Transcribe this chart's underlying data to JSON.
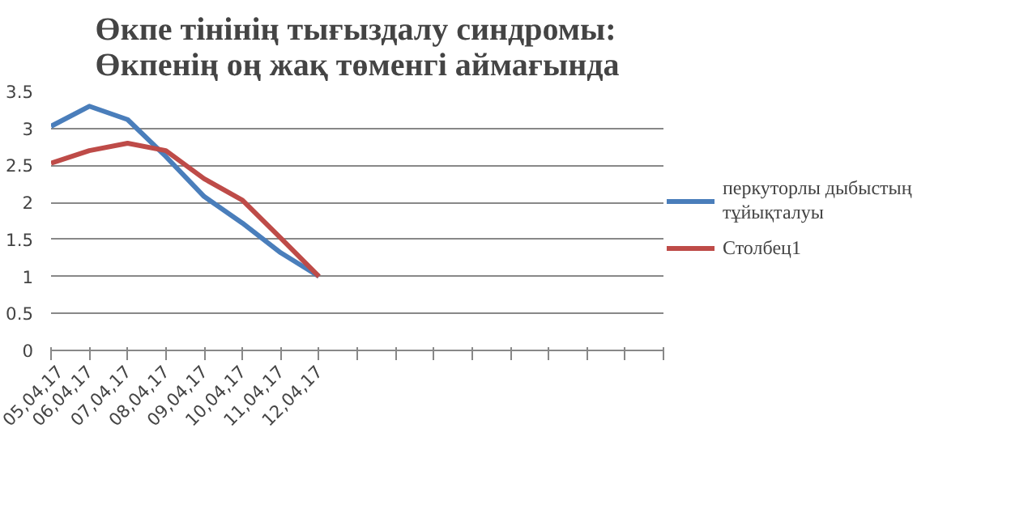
{
  "chart_data": {
    "type": "line",
    "title": "Өкпе тінінің тығыздалу синдромы:\nӨкпенің оң жақ төменгі аймағында",
    "categories": [
      "05,04,17",
      "06,04,17",
      "07,04,17",
      "08,04,17",
      "09,04,17",
      "10,04,17",
      "11,04,17",
      "12,04,17",
      null,
      null,
      null,
      null,
      null,
      null,
      null,
      null,
      null
    ],
    "series": [
      {
        "name": "перкуторлы дыбыстың тұйықталуы",
        "color": "#4a7ebb",
        "values": [
          3.03,
          3.3,
          3.12,
          2.62,
          2.08,
          1.72,
          1.32,
          1.0,
          null,
          null,
          null,
          null,
          null,
          null,
          null,
          null,
          null
        ]
      },
      {
        "name": "Столбец1",
        "color": "#be4b48",
        "values": [
          2.53,
          2.7,
          2.8,
          2.7,
          2.32,
          2.03,
          1.52,
          1.0,
          null,
          null,
          null,
          null,
          null,
          null,
          null,
          null,
          null
        ]
      }
    ],
    "ylim": [
      0,
      3.5
    ],
    "yticks": [
      0,
      0.5,
      1,
      1.5,
      2,
      2.5,
      3,
      3.5
    ],
    "grid": "y",
    "legend": "right",
    "marker": "none",
    "line_style": "solid"
  }
}
